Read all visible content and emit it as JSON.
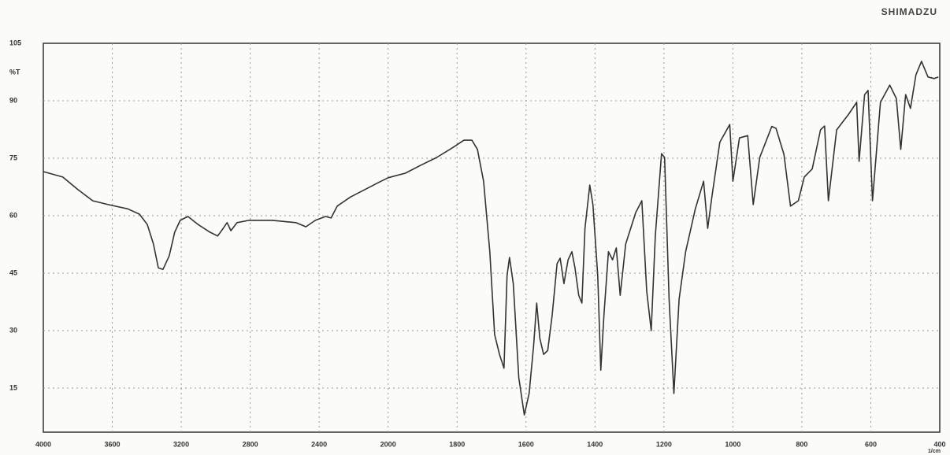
{
  "chart_data": {
    "type": "line",
    "brand": "SHIMADZU",
    "y_label": "%T",
    "x_label": "1/cm",
    "x": [
      4000,
      3887,
      3805,
      3714,
      3624,
      3510,
      3442,
      3397,
      3361,
      3333,
      3306,
      3270,
      3238,
      3206,
      3161,
      3102,
      3034,
      2989,
      2957,
      2934,
      2912,
      2876,
      2808,
      2671,
      2535,
      2477,
      2422,
      2363,
      2331,
      2295,
      2218,
      2127,
      2059,
      2000,
      1950,
      1905,
      1859,
      1814,
      1780,
      1757,
      1741,
      1723,
      1705,
      1691,
      1677,
      1664,
      1655,
      1648,
      1637,
      1621,
      1605,
      1591,
      1578,
      1569,
      1560,
      1549,
      1537,
      1524,
      1510,
      1501,
      1490,
      1478,
      1467,
      1458,
      1447,
      1438,
      1429,
      1415,
      1406,
      1392,
      1383,
      1374,
      1361,
      1349,
      1338,
      1327,
      1311,
      1282,
      1264,
      1250,
      1237,
      1225,
      1207,
      1198,
      1185,
      1171,
      1156,
      1137,
      1109,
      1085,
      1073,
      1061,
      1038,
      1009,
      1000,
      981,
      957,
      941,
      922,
      887,
      875,
      852,
      833,
      810,
      793,
      770,
      746,
      734,
      723,
      699,
      664,
      641,
      634,
      618,
      608,
      595,
      572,
      545,
      526,
      513,
      499,
      485,
      469,
      453,
      434,
      416,
      404
    ],
    "values": [
      71.5,
      70.1,
      67,
      63.9,
      62.9,
      61.8,
      60.4,
      57.7,
      52.6,
      46.4,
      46,
      49.5,
      55.7,
      58.8,
      59.8,
      57.7,
      55.7,
      54.7,
      56.7,
      58.2,
      56.1,
      58.2,
      58.8,
      58.8,
      58.2,
      57.1,
      58.8,
      59.8,
      59.4,
      62.5,
      64.9,
      67,
      68.6,
      69.9,
      71.1,
      73.2,
      75.2,
      77.7,
      79.7,
      79.7,
      77.3,
      69,
      50.6,
      29,
      23.8,
      20.2,
      44.4,
      49.1,
      42.3,
      17.7,
      8,
      13.6,
      26,
      37.2,
      28,
      23.8,
      24.8,
      34.1,
      47.5,
      48.9,
      42.3,
      48.5,
      50.6,
      46.4,
      39.2,
      37.2,
      56.7,
      68,
      62.9,
      44.4,
      19.7,
      34.1,
      50.6,
      48.5,
      51.6,
      39.2,
      52.6,
      60.8,
      63.9,
      40.3,
      30,
      54.7,
      76.2,
      75.2,
      38.2,
      13.6,
      38.2,
      50.6,
      61.8,
      69,
      56.7,
      64.9,
      79.2,
      83.8,
      69,
      80.3,
      80.9,
      62.9,
      75.2,
      83.3,
      82.8,
      76,
      62.5,
      63.9,
      70.1,
      72.2,
      82.4,
      83.4,
      63.9,
      82.4,
      86.5,
      89.6,
      74.2,
      91.6,
      92.7,
      63.9,
      89.6,
      94.1,
      90.6,
      77.3,
      91.6,
      88,
      96.8,
      100.3,
      96.2,
      95.8,
      96.2
    ],
    "color": "#333333",
    "xlim": [
      4000,
      400
    ],
    "xticks": [
      4000,
      3600,
      3200,
      2800,
      2400,
      2000,
      1800,
      1600,
      1400,
      1200,
      1000,
      800,
      600,
      400
    ],
    "ylim": [
      3.5,
      105
    ],
    "yticks": [
      15,
      30,
      45,
      60,
      75,
      90,
      105
    ],
    "grid": true
  }
}
